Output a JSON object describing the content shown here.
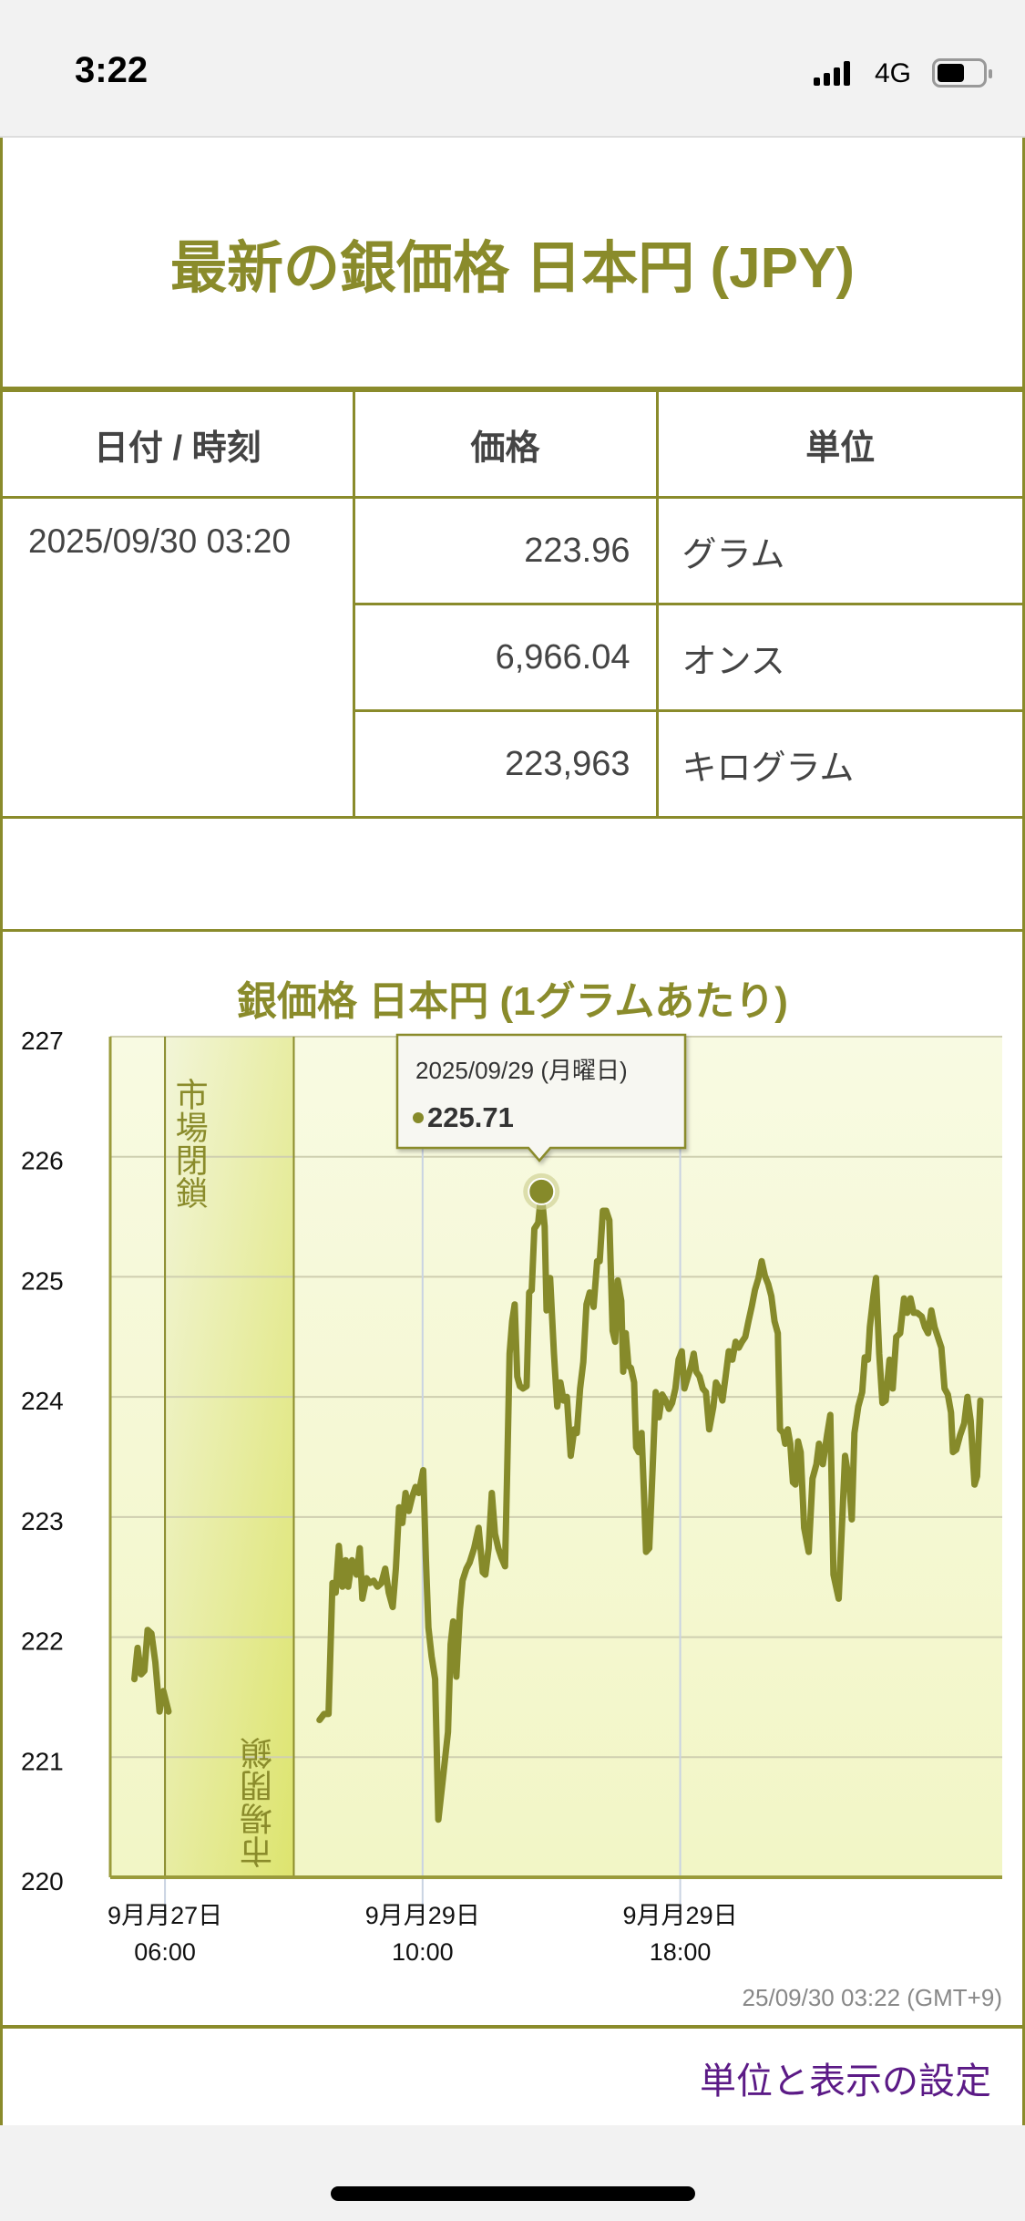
{
  "status_bar": {
    "time": "3:22",
    "network": "4G",
    "battery_level": 0.6
  },
  "header": {
    "title": "最新の銀価格 日本円 (JPY)"
  },
  "table": {
    "headers": [
      "日付 / 時刻",
      "価格",
      "単位"
    ],
    "datetime": "2025/09/30 03:20",
    "rows": [
      {
        "price": "223.96",
        "unit": "グラム"
      },
      {
        "price": "6,966.04",
        "unit": "オンス"
      },
      {
        "price": "223,963",
        "unit": "キログラム"
      }
    ]
  },
  "chart_data": {
    "type": "line",
    "title": "銀価格 日本円 (1グラムあたり)",
    "xlabel": "",
    "ylabel": "",
    "x_units": "trading hours relative to 9月29日 10:00 (market-closed period compressed)",
    "xlim": [
      -9.7,
      18
    ],
    "ylim": [
      220,
      227
    ],
    "y_ticks": [
      "220",
      "221",
      "222",
      "223",
      "224",
      "225",
      "226",
      "227"
    ],
    "x_ticks": [
      {
        "t": -8,
        "line1": "9月月27日",
        "line2": "06:00"
      },
      {
        "t": 0,
        "line1": "9月月29日",
        "line2": "10:00"
      },
      {
        "t": 8,
        "line1": "9月月29日",
        "line2": "18:00"
      }
    ],
    "closure_band": {
      "from": -8,
      "to": -4,
      "label_top": "市場閉鎖",
      "label_bottom": "市場閉鎖"
    },
    "grid": true,
    "line_color": "#868a2a",
    "tooltip": {
      "date": "2025/09/29 (月曜日)",
      "value": "225.71",
      "t": 3.69,
      "v": 225.71
    },
    "timestamp": "25/09/30 03:22 (GMT+9)",
    "series": [
      {
        "name": "segment-1",
        "points": [
          [
            -8.95,
            221.65
          ],
          [
            -8.85,
            221.91
          ],
          [
            -8.74,
            221.69
          ],
          [
            -8.64,
            221.72
          ],
          [
            -8.54,
            222.06
          ],
          [
            -8.42,
            222.03
          ],
          [
            -8.3,
            221.79
          ],
          [
            -8.17,
            221.38
          ],
          [
            -8.05,
            221.55
          ],
          [
            -7.89,
            221.38
          ]
        ]
      },
      {
        "name": "segment-2",
        "points": [
          [
            -3.2,
            221.31
          ],
          [
            -3.06,
            221.36
          ],
          [
            -2.92,
            221.36
          ],
          [
            -2.8,
            222.45
          ],
          [
            -2.7,
            222.37
          ],
          [
            -2.6,
            222.76
          ],
          [
            -2.49,
            222.42
          ],
          [
            -2.39,
            222.64
          ],
          [
            -2.31,
            222.42
          ],
          [
            -2.19,
            222.64
          ],
          [
            -2.05,
            222.52
          ],
          [
            -1.95,
            222.74
          ],
          [
            -1.87,
            222.32
          ],
          [
            -1.74,
            222.49
          ],
          [
            -1.64,
            222.45
          ],
          [
            -1.52,
            222.47
          ],
          [
            -1.4,
            222.42
          ],
          [
            -1.28,
            222.45
          ],
          [
            -1.16,
            222.57
          ],
          [
            -1.05,
            222.37
          ],
          [
            -0.93,
            222.25
          ],
          [
            -0.83,
            222.57
          ],
          [
            -0.73,
            223.08
          ],
          [
            -0.63,
            222.95
          ],
          [
            -0.53,
            223.2
          ],
          [
            -0.43,
            223.05
          ],
          [
            -0.32,
            223.17
          ],
          [
            -0.22,
            223.25
          ],
          [
            -0.12,
            223.2
          ],
          [
            0.02,
            223.39
          ],
          [
            0.1,
            222.66
          ],
          [
            0.18,
            222.08
          ],
          [
            0.28,
            221.84
          ],
          [
            0.39,
            221.65
          ],
          [
            0.49,
            220.48
          ],
          [
            0.63,
            220.82
          ],
          [
            0.79,
            221.21
          ],
          [
            0.87,
            221.94
          ],
          [
            0.95,
            222.13
          ],
          [
            1.05,
            221.67
          ],
          [
            1.16,
            222.23
          ],
          [
            1.24,
            222.47
          ],
          [
            1.36,
            222.57
          ],
          [
            1.46,
            222.62
          ],
          [
            1.6,
            222.74
          ],
          [
            1.74,
            222.91
          ],
          [
            1.87,
            222.54
          ],
          [
            1.95,
            222.52
          ],
          [
            2.05,
            222.74
          ],
          [
            2.15,
            223.2
          ],
          [
            2.25,
            222.86
          ],
          [
            2.35,
            222.74
          ],
          [
            2.45,
            222.66
          ],
          [
            2.56,
            222.59
          ],
          [
            2.62,
            223.29
          ],
          [
            2.7,
            224.36
          ],
          [
            2.78,
            224.63
          ],
          [
            2.86,
            224.77
          ],
          [
            2.94,
            224.17
          ],
          [
            3.02,
            224.09
          ],
          [
            3.12,
            224.07
          ],
          [
            3.23,
            224.09
          ],
          [
            3.31,
            224.87
          ],
          [
            3.39,
            224.89
          ],
          [
            3.47,
            225.4
          ],
          [
            3.59,
            225.45
          ],
          [
            3.69,
            225.71
          ],
          [
            3.79,
            225.42
          ],
          [
            3.85,
            224.72
          ],
          [
            3.96,
            224.99
          ],
          [
            4.08,
            224.36
          ],
          [
            4.18,
            223.92
          ],
          [
            4.28,
            224.12
          ],
          [
            4.38,
            223.97
          ],
          [
            4.48,
            224.0
          ],
          [
            4.6,
            223.51
          ],
          [
            4.71,
            223.73
          ],
          [
            4.79,
            223.7
          ],
          [
            4.89,
            224.07
          ],
          [
            4.99,
            224.29
          ],
          [
            5.09,
            224.77
          ],
          [
            5.19,
            224.87
          ],
          [
            5.31,
            224.75
          ],
          [
            5.42,
            225.13
          ],
          [
            5.5,
            225.13
          ],
          [
            5.6,
            225.55
          ],
          [
            5.7,
            225.55
          ],
          [
            5.8,
            225.47
          ],
          [
            5.9,
            224.55
          ],
          [
            5.98,
            224.46
          ],
          [
            6.06,
            224.97
          ],
          [
            6.17,
            224.8
          ],
          [
            6.23,
            224.21
          ],
          [
            6.31,
            224.53
          ],
          [
            6.39,
            224.26
          ],
          [
            6.47,
            224.24
          ],
          [
            6.57,
            224.12
          ],
          [
            6.63,
            223.58
          ],
          [
            6.71,
            223.54
          ],
          [
            6.8,
            223.7
          ],
          [
            6.88,
            223.15
          ],
          [
            6.94,
            222.71
          ],
          [
            7.04,
            222.74
          ],
          [
            7.14,
            223.39
          ],
          [
            7.24,
            224.04
          ],
          [
            7.34,
            223.83
          ],
          [
            7.44,
            224.02
          ],
          [
            7.55,
            223.97
          ],
          [
            7.65,
            223.9
          ],
          [
            7.75,
            223.95
          ],
          [
            7.85,
            224.07
          ],
          [
            7.95,
            224.31
          ],
          [
            8.05,
            224.38
          ],
          [
            8.13,
            224.07
          ],
          [
            8.24,
            224.17
          ],
          [
            8.34,
            224.26
          ],
          [
            8.42,
            224.36
          ],
          [
            8.5,
            224.21
          ],
          [
            8.6,
            224.17
          ],
          [
            8.7,
            224.07
          ],
          [
            8.8,
            224.04
          ],
          [
            8.9,
            223.73
          ],
          [
            9.03,
            223.92
          ],
          [
            9.11,
            224.12
          ],
          [
            9.21,
            224.07
          ],
          [
            9.31,
            223.97
          ],
          [
            9.41,
            224.17
          ],
          [
            9.51,
            224.38
          ],
          [
            9.62,
            224.31
          ],
          [
            9.72,
            224.46
          ],
          [
            9.82,
            224.41
          ],
          [
            9.92,
            224.46
          ],
          [
            10.02,
            224.5
          ],
          [
            10.12,
            224.63
          ],
          [
            10.22,
            224.75
          ],
          [
            10.32,
            224.89
          ],
          [
            10.43,
            224.99
          ],
          [
            10.53,
            225.13
          ],
          [
            10.63,
            225.01
          ],
          [
            10.73,
            224.94
          ],
          [
            10.83,
            224.84
          ],
          [
            10.93,
            224.63
          ],
          [
            11.03,
            224.53
          ],
          [
            11.1,
            223.73
          ],
          [
            11.2,
            223.7
          ],
          [
            11.26,
            223.61
          ],
          [
            11.34,
            223.73
          ],
          [
            11.42,
            223.61
          ],
          [
            11.5,
            223.29
          ],
          [
            11.58,
            223.27
          ],
          [
            11.66,
            223.63
          ],
          [
            11.74,
            223.54
          ],
          [
            11.85,
            222.91
          ],
          [
            11.99,
            222.71
          ],
          [
            12.11,
            223.32
          ],
          [
            12.23,
            223.44
          ],
          [
            12.31,
            223.61
          ],
          [
            12.43,
            223.44
          ],
          [
            12.56,
            223.68
          ],
          [
            12.66,
            223.85
          ],
          [
            12.76,
            222.52
          ],
          [
            12.92,
            222.32
          ],
          [
            13.02,
            222.91
          ],
          [
            13.12,
            223.51
          ],
          [
            13.25,
            223.29
          ],
          [
            13.33,
            222.98
          ],
          [
            13.41,
            223.7
          ],
          [
            13.53,
            223.92
          ],
          [
            13.65,
            224.04
          ],
          [
            13.73,
            224.33
          ],
          [
            13.83,
            224.31
          ],
          [
            13.89,
            224.58
          ],
          [
            14.0,
            224.84
          ],
          [
            14.08,
            224.99
          ],
          [
            14.18,
            224.36
          ],
          [
            14.28,
            223.95
          ],
          [
            14.38,
            223.97
          ],
          [
            14.5,
            224.31
          ],
          [
            14.6,
            224.07
          ],
          [
            14.71,
            224.5
          ],
          [
            14.83,
            224.53
          ],
          [
            14.95,
            224.82
          ],
          [
            15.05,
            224.7
          ],
          [
            15.15,
            224.82
          ],
          [
            15.25,
            224.7
          ],
          [
            15.36,
            224.7
          ],
          [
            15.5,
            224.67
          ],
          [
            15.6,
            224.58
          ],
          [
            15.7,
            224.53
          ],
          [
            15.8,
            224.72
          ],
          [
            15.9,
            224.58
          ],
          [
            16.0,
            224.5
          ],
          [
            16.11,
            224.41
          ],
          [
            16.21,
            224.07
          ],
          [
            16.31,
            224.02
          ],
          [
            16.41,
            223.87
          ],
          [
            16.47,
            223.54
          ],
          [
            16.57,
            223.56
          ],
          [
            16.69,
            223.68
          ],
          [
            16.82,
            223.78
          ],
          [
            16.92,
            224.0
          ],
          [
            17.02,
            223.8
          ],
          [
            17.14,
            223.27
          ],
          [
            17.22,
            223.34
          ],
          [
            17.32,
            223.97
          ]
        ]
      }
    ]
  },
  "footer": {
    "settings_link": "単位と表示の設定"
  }
}
